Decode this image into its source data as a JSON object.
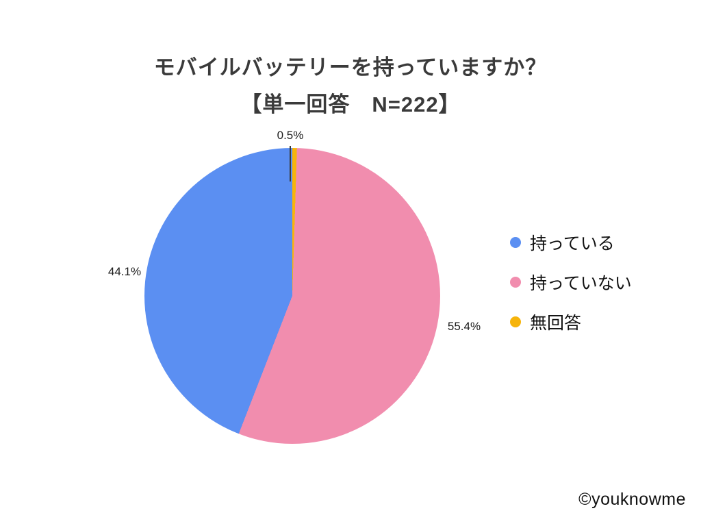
{
  "title": {
    "line1": "モバイルバッテリーを持っていますか？",
    "line2": "【単一回答　N=222】"
  },
  "watermark": "©youknowme",
  "chart_data": {
    "type": "pie",
    "title": "モバイルバッテリーを持っていますか？【単一回答 N=222】",
    "n": 222,
    "unit": "%",
    "direction": "clockwise",
    "start_angle_deg": 0,
    "legend_position": "right",
    "slices": [
      {
        "label": "無回答",
        "value": 0.5,
        "display": "0.5%",
        "color": "#F6B40B"
      },
      {
        "label": "持っていない",
        "value": 55.4,
        "display": "55.4%",
        "color": "#F18DAE"
      },
      {
        "label": "持っている",
        "value": 44.1,
        "display": "44.1%",
        "color": "#5B8FF2"
      }
    ],
    "legend": [
      {
        "label": "持っている"
      },
      {
        "label": "持っていない"
      },
      {
        "label": "無回答"
      }
    ]
  }
}
